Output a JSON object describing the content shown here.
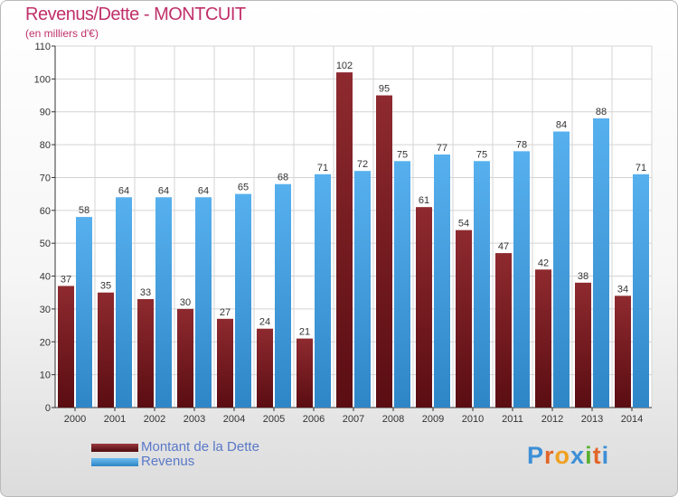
{
  "colors": {
    "dette": "#7a1e22",
    "revenus": "#4aa3e4",
    "accent": "#c0306a"
  },
  "chart_data": {
    "type": "bar",
    "title": "Revenus/Dette - MONTCUIT",
    "subtitle": "(en milliers d'€)",
    "xlabel": "",
    "ylabel": "",
    "ylim": [
      0,
      110
    ],
    "yticks": [
      0,
      10,
      20,
      30,
      40,
      50,
      60,
      70,
      80,
      90,
      100,
      110
    ],
    "grid": true,
    "legend_position": "bottom-left",
    "categories": [
      "2000",
      "2001",
      "2002",
      "2003",
      "2004",
      "2005",
      "2006",
      "2007",
      "2008",
      "2009",
      "2010",
      "2011",
      "2012",
      "2013",
      "2014"
    ],
    "series": [
      {
        "name": "Montant de la Dette",
        "color": "#7a1e22",
        "values": [
          37,
          35,
          33,
          30,
          27,
          24,
          21,
          102,
          95,
          61,
          54,
          47,
          42,
          38,
          34
        ]
      },
      {
        "name": "Revenus",
        "color": "#4aa3e4",
        "values": [
          58,
          64,
          64,
          64,
          65,
          68,
          71,
          72,
          75,
          77,
          75,
          78,
          84,
          88,
          71
        ]
      }
    ]
  },
  "logo": {
    "text": "Proxiti"
  }
}
